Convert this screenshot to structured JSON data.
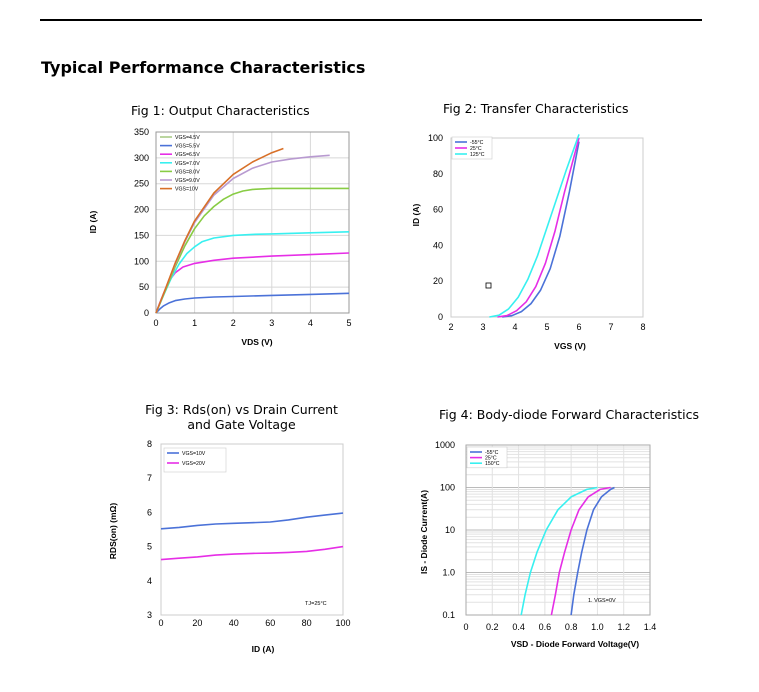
{
  "header": {
    "section_title": "Typical Performance Characteristics"
  },
  "chart_data": [
    {
      "id": "fig1",
      "type": "line",
      "title": "Fig 1: Output Characteristics",
      "xlabel": "VDS (V)",
      "ylabel": "ID (A)",
      "xlim": [
        0,
        5
      ],
      "ylim": [
        0,
        350
      ],
      "xticks": [
        "0",
        "1",
        "2",
        "3",
        "4",
        "5"
      ],
      "yticks": [
        "0",
        "50",
        "100",
        "150",
        "200",
        "250",
        "300",
        "350"
      ],
      "series": [
        {
          "name": "VGS=4.5V",
          "color": "#aacc88",
          "x": [
            0,
            4.5
          ],
          "y": [
            0,
            0
          ]
        },
        {
          "name": "VGS=5.5V",
          "color": "#4b72d8",
          "x": [
            0,
            0.1,
            0.2,
            0.35,
            0.5,
            0.75,
            1,
            1.5,
            2,
            3,
            4,
            5
          ],
          "y": [
            0,
            8,
            14,
            20,
            24,
            27,
            29,
            31,
            32,
            34,
            36,
            38
          ]
        },
        {
          "name": "VGS=6.5V",
          "color": "#e62ee6",
          "x": [
            0,
            0.1,
            0.2,
            0.3,
            0.4,
            0.5,
            0.7,
            1,
            1.5,
            2,
            3,
            4,
            5
          ],
          "y": [
            0,
            20,
            38,
            55,
            68,
            78,
            89,
            96,
            102,
            106,
            110,
            113,
            116
          ]
        },
        {
          "name": "VGS=7.0V",
          "color": "#38f0f0",
          "x": [
            0,
            0.2,
            0.4,
            0.6,
            0.8,
            1,
            1.2,
            1.5,
            2,
            2.5,
            3,
            4,
            5
          ],
          "y": [
            0,
            35,
            68,
            95,
            115,
            128,
            138,
            145,
            150,
            152,
            153,
            155,
            157
          ]
        },
        {
          "name": "VGS=8.0V",
          "color": "#88cc44",
          "x": [
            0,
            0.25,
            0.5,
            0.75,
            1,
            1.25,
            1.5,
            1.75,
            2,
            2.25,
            2.5,
            3,
            4,
            5
          ],
          "y": [
            0,
            45,
            90,
            130,
            163,
            188,
            206,
            220,
            230,
            236,
            239,
            241,
            241,
            241
          ]
        },
        {
          "name": "VGS=9.0V",
          "color": "#b89ad0",
          "x": [
            0,
            0.25,
            0.5,
            0.75,
            1,
            1.5,
            2,
            2.5,
            3,
            3.5,
            4,
            4.5
          ],
          "y": [
            0,
            48,
            95,
            138,
            175,
            228,
            260,
            280,
            292,
            298,
            302,
            305
          ]
        },
        {
          "name": "VGS=10V",
          "color": "#d87028",
          "x": [
            0,
            0.25,
            0.5,
            0.75,
            1,
            1.5,
            2,
            2.5,
            3,
            3.3
          ],
          "y": [
            0,
            48,
            97,
            140,
            178,
            232,
            268,
            292,
            310,
            318
          ]
        }
      ]
    },
    {
      "id": "fig2",
      "type": "line",
      "title": "Fig 2: Transfer Characteristics",
      "xlabel": "VGS (V)",
      "ylabel": "ID (A)",
      "xlim": [
        2,
        8
      ],
      "ylim": [
        0,
        100
      ],
      "xticks": [
        "2",
        "3",
        "4",
        "5",
        "6",
        "7",
        "8"
      ],
      "yticks": [
        "0",
        "20",
        "40",
        "60",
        "80",
        "100"
      ],
      "series": [
        {
          "name": "-55°C",
          "color": "#4b72d8",
          "x": [
            3.6,
            3.9,
            4.2,
            4.5,
            4.8,
            5.1,
            5.4,
            5.7,
            6.0
          ],
          "y": [
            0,
            0.7,
            3,
            7.5,
            15,
            27,
            45,
            70,
            98
          ]
        },
        {
          "name": "25°C",
          "color": "#e62ee6",
          "x": [
            3.45,
            3.75,
            4.05,
            4.35,
            4.65,
            4.95,
            5.25,
            5.55,
            5.85,
            6.0
          ],
          "y": [
            0,
            0.8,
            3.5,
            8.5,
            17,
            30,
            48,
            70,
            90,
            100
          ]
        },
        {
          "name": "125°C",
          "color": "#38f0f0",
          "x": [
            3.2,
            3.5,
            3.8,
            4.1,
            4.4,
            4.7,
            5.0,
            5.3,
            5.6,
            5.8,
            6.0
          ],
          "y": [
            0,
            1,
            4.5,
            11,
            21,
            34,
            50,
            66,
            82,
            92,
            102
          ]
        }
      ]
    },
    {
      "id": "fig3",
      "type": "line",
      "title": "Fig 3: Rds(on) vs Drain Current and Gate Voltage",
      "xlabel": "ID (A)",
      "ylabel": "RDS(on) (mΩ)",
      "xlim": [
        0,
        100
      ],
      "ylim": [
        3,
        8
      ],
      "xticks": [
        "0",
        "20",
        "40",
        "60",
        "80",
        "100"
      ],
      "yticks": [
        "3",
        "4",
        "5",
        "6",
        "7",
        "8"
      ],
      "annotation": "TJ=25°C",
      "series": [
        {
          "name": "VGS=10V",
          "color": "#4b72d8",
          "x": [
            0,
            10,
            20,
            30,
            40,
            50,
            60,
            70,
            80,
            90,
            100
          ],
          "y": [
            5.52,
            5.56,
            5.62,
            5.66,
            5.68,
            5.7,
            5.72,
            5.78,
            5.86,
            5.92,
            5.98
          ]
        },
        {
          "name": "VGS=20V",
          "color": "#e62ee6",
          "x": [
            0,
            10,
            20,
            30,
            40,
            50,
            60,
            70,
            80,
            90,
            100
          ],
          "y": [
            4.62,
            4.66,
            4.7,
            4.75,
            4.78,
            4.8,
            4.81,
            4.83,
            4.86,
            4.92,
            5.0
          ]
        }
      ]
    },
    {
      "id": "fig4",
      "type": "line",
      "scale_y": "log",
      "title": "Fig 4: Body-diode Forward Characteristics",
      "xlabel": "VSD - Diode Forward Voltage(V)",
      "ylabel": "IS - Diode Current(A)",
      "xlim": [
        0,
        1.4
      ],
      "ylim": [
        0.1,
        1000
      ],
      "xticks": [
        "0",
        "0.2",
        "0.4",
        "0.6",
        "0.8",
        "1.0",
        "1.2",
        "1.4"
      ],
      "yticks": [
        "0.1",
        "1.0",
        "10",
        "100",
        "1000"
      ],
      "annotation": "1. VGS=0V",
      "series": [
        {
          "name": "-55°C",
          "color": "#4b72d8",
          "x": [
            0.8,
            0.82,
            0.85,
            0.88,
            0.92,
            0.97,
            1.03,
            1.1,
            1.13
          ],
          "y": [
            0.1,
            0.3,
            1,
            3,
            10,
            30,
            60,
            90,
            100
          ]
        },
        {
          "name": "25°C",
          "color": "#e62ee6",
          "x": [
            0.65,
            0.68,
            0.71,
            0.75,
            0.8,
            0.86,
            0.93,
            1.02,
            1.1
          ],
          "y": [
            0.1,
            0.3,
            1,
            3,
            10,
            30,
            60,
            90,
            100
          ]
        },
        {
          "name": "150°C",
          "color": "#38f0f0",
          "x": [
            0.42,
            0.45,
            0.49,
            0.54,
            0.61,
            0.7,
            0.8,
            0.92,
            1.0
          ],
          "y": [
            0.1,
            0.3,
            1,
            3,
            10,
            30,
            60,
            90,
            100
          ]
        }
      ]
    }
  ]
}
